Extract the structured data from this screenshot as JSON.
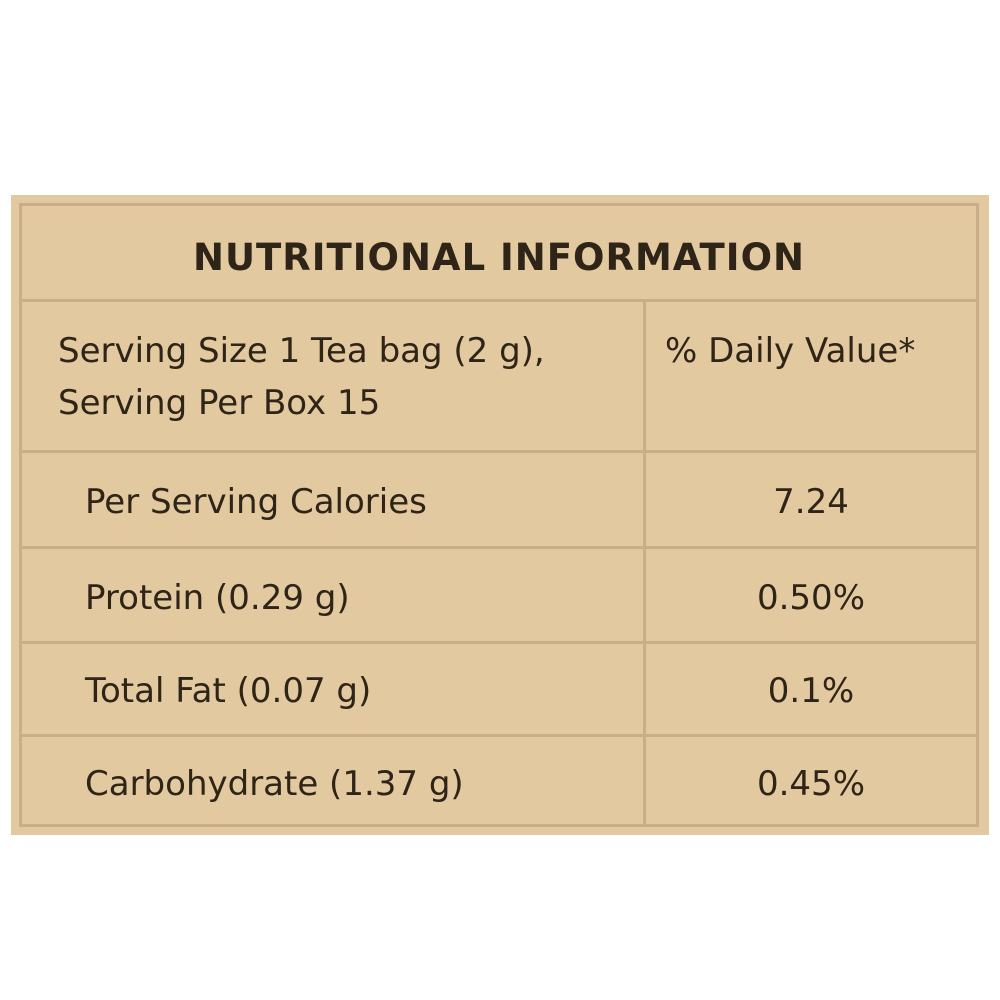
{
  "title": "NUTRITIONAL INFORMATION",
  "header": {
    "serving_line_1": "Serving Size 1 Tea bag (2 g),",
    "serving_line_2": "Serving Per Box 15",
    "daily_value_label": "% Daily Value*"
  },
  "rows": [
    {
      "label": "Per Serving Calories",
      "value": "7.24"
    },
    {
      "label": "Protein (0.29 g)",
      "value": "0.50%"
    },
    {
      "label": "Total Fat (0.07 g)",
      "value": "0.1%"
    },
    {
      "label": "Carbohydrate (1.37 g)",
      "value": "0.45%"
    }
  ],
  "colors": {
    "background": "#e3c99f",
    "rule": "#c9ae86",
    "text": "#2e2418"
  }
}
